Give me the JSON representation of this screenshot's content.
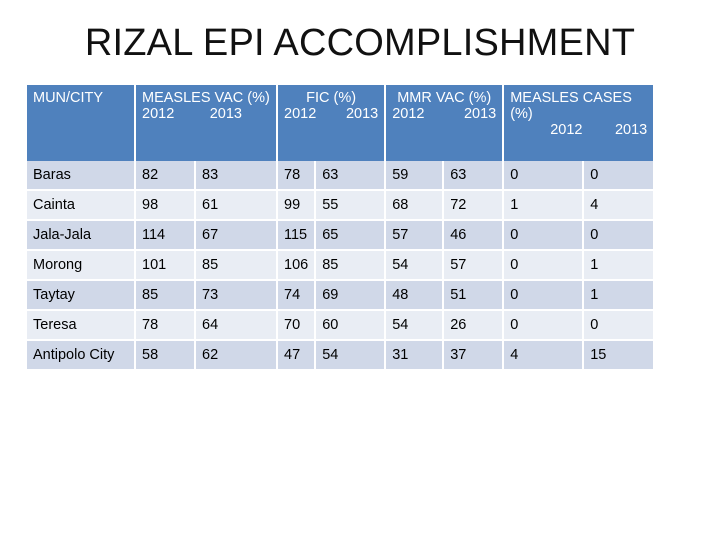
{
  "title": "RIZAL EPI ACCOMPLISHMENT",
  "headers": {
    "mun": "MUN/CITY",
    "measles_vac": "MEASLES VAC (%)",
    "fic": "FIC (%)",
    "mmr_vac": "MMR VAC (%)",
    "measles_cases_1": "MEASLES CASES",
    "measles_cases_2": "(%)",
    "year_a": "2012",
    "year_b": "2013"
  },
  "rows": [
    {
      "name": "Baras",
      "mv12": "82",
      "mv13": "83",
      "fic12": "78",
      "fic13": "63",
      "mmr12": "59",
      "mmr13": "63",
      "mc12": "0",
      "mc13": "0"
    },
    {
      "name": "Cainta",
      "mv12": "98",
      "mv13": "61",
      "fic12": "99",
      "fic13": "55",
      "mmr12": "68",
      "mmr13": "72",
      "mc12": "1",
      "mc13": "4"
    },
    {
      "name": "Jala-Jala",
      "mv12": "114",
      "mv13": "67",
      "fic12": "115",
      "fic13": "65",
      "mmr12": "57",
      "mmr13": "46",
      "mc12": "0",
      "mc13": "0"
    },
    {
      "name": "Morong",
      "mv12": "101",
      "mv13": "85",
      "fic12": "106",
      "fic13": "85",
      "mmr12": "54",
      "mmr13": "57",
      "mc12": "0",
      "mc13": "1"
    },
    {
      "name": "Taytay",
      "mv12": "85",
      "mv13": "73",
      "fic12": "74",
      "fic13": "69",
      "mmr12": "48",
      "mmr13": "51",
      "mc12": "0",
      "mc13": "1"
    },
    {
      "name": "Teresa",
      "mv12": "78",
      "mv13": "64",
      "fic12": "70",
      "fic13": "60",
      "mmr12": "54",
      "mmr13": "26",
      "mc12": "0",
      "mc13": "0"
    },
    {
      "name": "Antipolo City",
      "mv12": "58",
      "mv13": "62",
      "fic12": "47",
      "fic13": "54",
      "mmr12": "31",
      "mmr13": "37",
      "mc12": "4",
      "mc13": "15"
    }
  ]
}
